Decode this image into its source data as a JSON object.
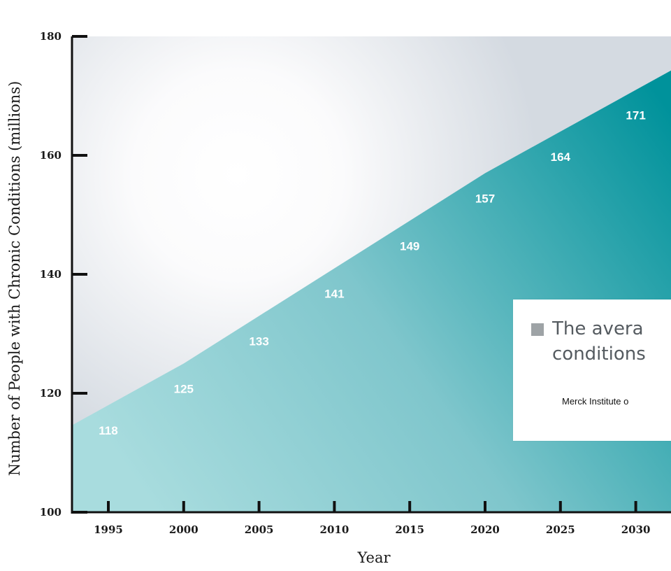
{
  "chart_data": {
    "type": "area",
    "xlabel": "Year",
    "ylabel": "Number of People with Chronic Conditions (millions)",
    "x": [
      1995,
      2000,
      2005,
      2010,
      2015,
      2020,
      2025,
      2030
    ],
    "values": [
      118,
      125,
      133,
      141,
      149,
      157,
      164,
      171
    ],
    "data_labels": [
      "118",
      "125",
      "133",
      "141",
      "149",
      "157",
      "164",
      "171"
    ],
    "xticks": [
      "1995",
      "2000",
      "2005",
      "2010",
      "2015",
      "2020",
      "2025",
      "2030"
    ],
    "yticks": [
      "100",
      "120",
      "140",
      "160",
      "180"
    ],
    "ylim": [
      100,
      180
    ],
    "colors": {
      "fill_light": "#a8dcde",
      "fill_dark": "#00929b",
      "background": "#d6dce3"
    }
  },
  "legend": {
    "line1": "The avera",
    "line2": "conditions",
    "source": "Merck Institute o",
    "swatch_color": "#9ea3a6"
  }
}
